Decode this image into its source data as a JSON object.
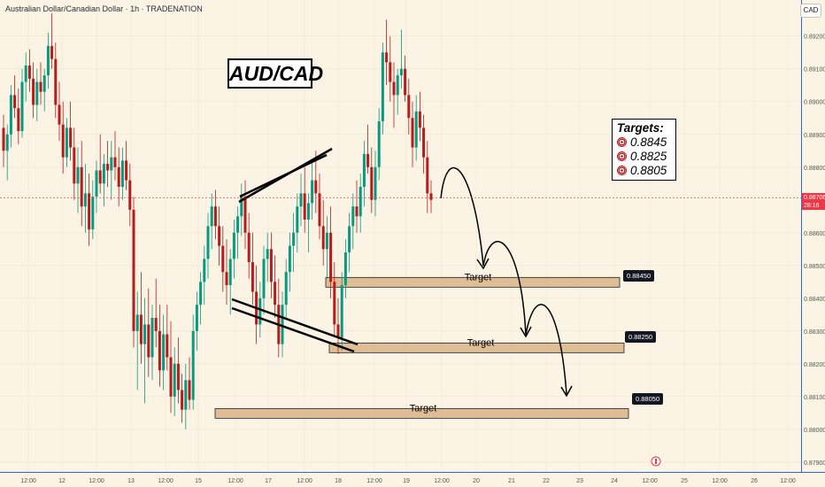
{
  "header": {
    "symbol_text": "Australian Dollar/Canadian Dollar · 1h · TRADENATION",
    "currency": "CAD"
  },
  "title": "AUD/CAD",
  "targets_box": {
    "heading": "Targets:",
    "items": [
      "0.8845",
      "0.8825",
      "0.8805"
    ]
  },
  "current_price": {
    "value": "0.88706",
    "countdown": "28:16"
  },
  "zone_label": "Target",
  "colors": {
    "up": "#089981",
    "down": "#b71c1c",
    "zone": "#d9b48a",
    "current_line": "#f23645"
  },
  "chart_data": {
    "type": "candlestick",
    "y_ticks": [
      "0.89200",
      "0.89100",
      "0.89000",
      "0.88900",
      "0.88800",
      "0.88600",
      "0.88500",
      "0.88400",
      "0.88300",
      "0.88200",
      "0.88100",
      "0.88000",
      "0.87900"
    ],
    "x_ticks": [
      "12:00",
      "12",
      "12:00",
      "13",
      "12:00",
      "15",
      "12:00",
      "17",
      "12:00",
      "18",
      "12:00",
      "19",
      "12:00",
      "20",
      "21",
      "22",
      "23",
      "24",
      "12:00",
      "25",
      "12:00",
      "26",
      "12:00"
    ],
    "ylim": [
      0.8787,
      0.8931
    ],
    "current_price": 0.88706,
    "target_zones": [
      {
        "level": 0.8845,
        "label": "0.88450"
      },
      {
        "level": 0.8825,
        "label": "0.88250"
      },
      {
        "level": 0.8805,
        "label": "0.88050"
      }
    ],
    "candles": [
      [
        0.8892,
        0.8896,
        0.888,
        0.8885
      ],
      [
        0.8885,
        0.8893,
        0.8876,
        0.889
      ],
      [
        0.889,
        0.8905,
        0.8886,
        0.8902
      ],
      [
        0.8902,
        0.8908,
        0.8895,
        0.8898
      ],
      [
        0.8898,
        0.8904,
        0.8887,
        0.8891
      ],
      [
        0.8891,
        0.891,
        0.8889,
        0.8906
      ],
      [
        0.8906,
        0.8915,
        0.89,
        0.8911
      ],
      [
        0.8911,
        0.8916,
        0.8903,
        0.8907
      ],
      [
        0.8907,
        0.8912,
        0.8895,
        0.8899
      ],
      [
        0.8899,
        0.891,
        0.8894,
        0.8906
      ],
      [
        0.8906,
        0.8912,
        0.8899,
        0.8903
      ],
      [
        0.8903,
        0.891,
        0.8897,
        0.8908
      ],
      [
        0.8908,
        0.8921,
        0.8904,
        0.8917
      ],
      [
        0.8917,
        0.8927,
        0.891,
        0.8913
      ],
      [
        0.8913,
        0.8918,
        0.8895,
        0.8899
      ],
      [
        0.8899,
        0.8906,
        0.8888,
        0.8893
      ],
      [
        0.8893,
        0.89,
        0.8878,
        0.8883
      ],
      [
        0.8883,
        0.8895,
        0.888,
        0.8892
      ],
      [
        0.8892,
        0.89,
        0.8882,
        0.8886
      ],
      [
        0.8886,
        0.8892,
        0.887,
        0.8875
      ],
      [
        0.8875,
        0.8886,
        0.8866,
        0.888
      ],
      [
        0.888,
        0.8888,
        0.8862,
        0.8868
      ],
      [
        0.8868,
        0.8881,
        0.886,
        0.8872
      ],
      [
        0.8872,
        0.8878,
        0.8856,
        0.8861
      ],
      [
        0.8861,
        0.8876,
        0.8858,
        0.8871
      ],
      [
        0.8871,
        0.8882,
        0.8866,
        0.8879
      ],
      [
        0.8879,
        0.889,
        0.8872,
        0.8875
      ],
      [
        0.8875,
        0.8884,
        0.8868,
        0.8881
      ],
      [
        0.8881,
        0.8888,
        0.8874,
        0.8879
      ],
      [
        0.8879,
        0.8888,
        0.887,
        0.8883
      ],
      [
        0.8883,
        0.8891,
        0.8876,
        0.888
      ],
      [
        0.888,
        0.8886,
        0.8868,
        0.8874
      ],
      [
        0.8874,
        0.8886,
        0.887,
        0.8882
      ],
      [
        0.8882,
        0.8888,
        0.8873,
        0.8876
      ],
      [
        0.8876,
        0.8881,
        0.8862,
        0.8867
      ],
      [
        0.8867,
        0.8871,
        0.8825,
        0.883
      ],
      [
        0.883,
        0.8842,
        0.8812,
        0.8835
      ],
      [
        0.8835,
        0.8848,
        0.882,
        0.8826
      ],
      [
        0.8826,
        0.884,
        0.8808,
        0.8832
      ],
      [
        0.8832,
        0.8843,
        0.8816,
        0.8822
      ],
      [
        0.8822,
        0.8838,
        0.8815,
        0.8834
      ],
      [
        0.8834,
        0.8846,
        0.8825,
        0.883
      ],
      [
        0.883,
        0.8838,
        0.8813,
        0.8818
      ],
      [
        0.8818,
        0.8835,
        0.8812,
        0.8829
      ],
      [
        0.8829,
        0.8838,
        0.8818,
        0.8822
      ],
      [
        0.8822,
        0.8833,
        0.8805,
        0.881
      ],
      [
        0.881,
        0.8825,
        0.8804,
        0.882
      ],
      [
        0.882,
        0.8828,
        0.8808,
        0.8812
      ],
      [
        0.8812,
        0.8817,
        0.8802,
        0.8806
      ],
      [
        0.8806,
        0.882,
        0.88,
        0.8815
      ],
      [
        0.8815,
        0.8822,
        0.8806,
        0.8809
      ],
      [
        0.8809,
        0.8835,
        0.8806,
        0.883
      ],
      [
        0.883,
        0.8842,
        0.8824,
        0.8838
      ],
      [
        0.8838,
        0.8848,
        0.8832,
        0.8845
      ],
      [
        0.8845,
        0.8856,
        0.8838,
        0.8852
      ],
      [
        0.8852,
        0.8866,
        0.8846,
        0.8862
      ],
      [
        0.8862,
        0.8872,
        0.8855,
        0.8868
      ],
      [
        0.8868,
        0.8873,
        0.8858,
        0.8862
      ],
      [
        0.8862,
        0.8868,
        0.885,
        0.8856
      ],
      [
        0.8856,
        0.8862,
        0.8842,
        0.8848
      ],
      [
        0.8848,
        0.8858,
        0.8838,
        0.8844
      ],
      [
        0.8844,
        0.8855,
        0.8835,
        0.8852
      ],
      [
        0.8852,
        0.8864,
        0.8846,
        0.886
      ],
      [
        0.886,
        0.8868,
        0.8852,
        0.8865
      ],
      [
        0.8865,
        0.8875,
        0.8859,
        0.8871
      ],
      [
        0.8871,
        0.8876,
        0.8855,
        0.886
      ],
      [
        0.886,
        0.8866,
        0.8846,
        0.8851
      ],
      [
        0.8851,
        0.886,
        0.8838,
        0.8842
      ],
      [
        0.8842,
        0.885,
        0.8826,
        0.8832
      ],
      [
        0.8832,
        0.8845,
        0.8828,
        0.884
      ],
      [
        0.884,
        0.8856,
        0.8835,
        0.8852
      ],
      [
        0.8852,
        0.886,
        0.8845,
        0.8855
      ],
      [
        0.8855,
        0.886,
        0.884,
        0.8845
      ],
      [
        0.8845,
        0.8853,
        0.8834,
        0.8838
      ],
      [
        0.8838,
        0.8846,
        0.8822,
        0.8826
      ],
      [
        0.8826,
        0.8842,
        0.8822,
        0.8838
      ],
      [
        0.8838,
        0.8852,
        0.8834,
        0.8848
      ],
      [
        0.8848,
        0.886,
        0.8842,
        0.8856
      ],
      [
        0.8856,
        0.8866,
        0.8848,
        0.886
      ],
      [
        0.886,
        0.8872,
        0.8854,
        0.8868
      ],
      [
        0.8868,
        0.8878,
        0.8862,
        0.8872
      ],
      [
        0.8872,
        0.888,
        0.886,
        0.8864
      ],
      [
        0.8864,
        0.8872,
        0.8854,
        0.8869
      ],
      [
        0.8869,
        0.8882,
        0.8864,
        0.8876
      ],
      [
        0.8876,
        0.8885,
        0.8866,
        0.8872
      ],
      [
        0.8872,
        0.8878,
        0.8858,
        0.8862
      ],
      [
        0.8862,
        0.887,
        0.885,
        0.8855
      ],
      [
        0.8855,
        0.8865,
        0.8846,
        0.886
      ],
      [
        0.886,
        0.8868,
        0.884,
        0.8845
      ],
      [
        0.8845,
        0.8851,
        0.8828,
        0.8832
      ],
      [
        0.8832,
        0.884,
        0.8823,
        0.8828
      ],
      [
        0.8828,
        0.8848,
        0.8824,
        0.8844
      ],
      [
        0.8844,
        0.8858,
        0.884,
        0.8854
      ],
      [
        0.8854,
        0.8866,
        0.8848,
        0.8862
      ],
      [
        0.8862,
        0.8872,
        0.8855,
        0.8868
      ],
      [
        0.8868,
        0.8876,
        0.886,
        0.8865
      ],
      [
        0.8865,
        0.8878,
        0.886,
        0.8874
      ],
      [
        0.8874,
        0.8888,
        0.8868,
        0.8884
      ],
      [
        0.8884,
        0.8893,
        0.8878,
        0.888
      ],
      [
        0.888,
        0.8886,
        0.8866,
        0.887
      ],
      [
        0.887,
        0.8885,
        0.8865,
        0.888
      ],
      [
        0.888,
        0.8898,
        0.8876,
        0.8894
      ],
      [
        0.8894,
        0.8918,
        0.889,
        0.8915
      ],
      [
        0.8915,
        0.8925,
        0.8905,
        0.8912
      ],
      [
        0.8912,
        0.892,
        0.89,
        0.8906
      ],
      [
        0.8906,
        0.8912,
        0.8892,
        0.8902
      ],
      [
        0.8902,
        0.891,
        0.8896,
        0.8908
      ],
      [
        0.8908,
        0.8922,
        0.8904,
        0.891
      ],
      [
        0.891,
        0.8914,
        0.89,
        0.8902
      ],
      [
        0.8902,
        0.8907,
        0.889,
        0.8895
      ],
      [
        0.8895,
        0.89,
        0.888,
        0.8886
      ],
      [
        0.8886,
        0.8902,
        0.8882,
        0.8897
      ],
      [
        0.8897,
        0.8903,
        0.8888,
        0.8892
      ],
      [
        0.8892,
        0.8896,
        0.8878,
        0.8883
      ],
      [
        0.8883,
        0.8888,
        0.8866,
        0.8872
      ],
      [
        0.8872,
        0.8876,
        0.8866,
        0.887
      ]
    ]
  }
}
